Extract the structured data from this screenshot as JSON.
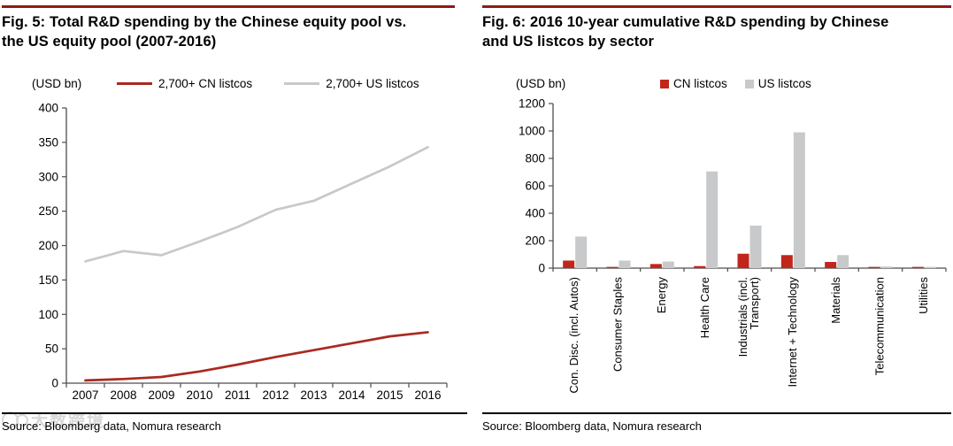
{
  "page": {
    "background": "#ffffff",
    "accent_rule_color": "#8e1b16",
    "axis_color": "#4d4d4d",
    "watermark": "大数跨境"
  },
  "chart_data": [
    {
      "type": "line",
      "title": "Fig. 5: Total R&D spending by the Chinese equity pool vs. the US equity pool (2007-2016)",
      "title_lines": [
        "Fig. 5: Total R&D spending by the Chinese equity pool vs.",
        "the US equity pool (2007-2016)"
      ],
      "ylabel": "(USD bn)",
      "xlabel": "",
      "x": [
        "2007",
        "2008",
        "2009",
        "2010",
        "2011",
        "2012",
        "2013",
        "2014",
        "2015",
        "2016"
      ],
      "series": [
        {
          "name": "2,700+ CN listcos",
          "color": "#aa2921",
          "values": [
            4,
            6,
            9,
            17,
            27,
            38,
            48,
            58,
            68,
            74
          ]
        },
        {
          "name": "2,700+ US listcos",
          "color": "#c8c8c8",
          "values": [
            177,
            192,
            186,
            206,
            227,
            252,
            265,
            290,
            315,
            343
          ]
        }
      ],
      "ylim": [
        0,
        400
      ],
      "ytick_step": 50,
      "grid": false,
      "legend_position": "top",
      "source": "Source: Bloomberg data, Nomura research"
    },
    {
      "type": "bar",
      "title": "Fig. 6: 2016 10-year cumulative R&D spending by Chinese and US listcos by sector",
      "title_lines": [
        "Fig. 6: 2016 10-year cumulative R&D spending by Chinese",
        "and US listcos by sector"
      ],
      "ylabel": "(USD bn)",
      "xlabel": "",
      "categories": [
        "Con. Disc. (incl. Autos)",
        "Consumer Staples",
        "Energy",
        "Health Care",
        "Industrials (incl. Transport)",
        "Internet + Technology",
        "Materials",
        "Telecommunication",
        "Utilities"
      ],
      "category_label_lines": [
        [
          "Con. Disc. (incl. Autos)"
        ],
        [
          "Consumer Staples"
        ],
        [
          "Energy"
        ],
        [
          "Health Care"
        ],
        [
          "Industrials (incl.",
          "Transport)"
        ],
        [
          "Internet + Technology"
        ],
        [
          "Materials"
        ],
        [
          "Telecommunication"
        ],
        [
          "Utilities"
        ]
      ],
      "series": [
        {
          "name": "CN listcos",
          "color": "#c2251c",
          "values": [
            55,
            8,
            30,
            15,
            105,
            95,
            45,
            5,
            4
          ]
        },
        {
          "name": "US listcos",
          "color": "#c8c9ca",
          "values": [
            230,
            55,
            48,
            705,
            310,
            990,
            95,
            12,
            2
          ]
        }
      ],
      "ylim": [
        0,
        1200
      ],
      "ytick_step": 200,
      "grid": false,
      "legend_position": "top",
      "source": "Source: Bloomberg data, Nomura research"
    }
  ]
}
